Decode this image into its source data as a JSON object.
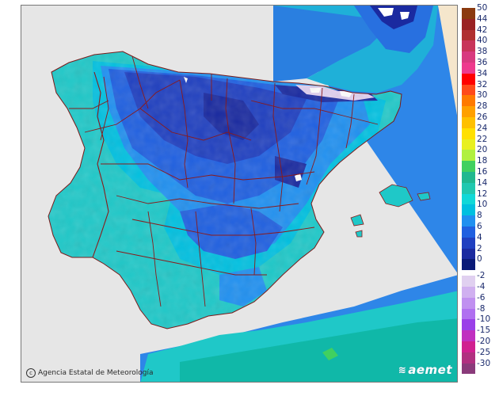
{
  "map": {
    "credit": "Agencia Estatal de Meteorología",
    "brand": "aemet",
    "colors": {
      "sea": "#2e86e8",
      "sea_warm": "#1fd0e6",
      "outside": "#e6e6e6",
      "land_base": "#1fc8c8",
      "border": "#8b1a1a"
    }
  },
  "legend": {
    "positive": [
      {
        "label": "50",
        "color": "#8b3a0f"
      },
      {
        "label": "44",
        "color": "#9a2222"
      },
      {
        "label": "42",
        "color": "#b03030"
      },
      {
        "label": "40",
        "color": "#c8345a"
      },
      {
        "label": "38",
        "color": "#d83a80"
      },
      {
        "label": "36",
        "color": "#ee3a8e"
      },
      {
        "label": "34",
        "color": "#ff0000"
      },
      {
        "label": "32",
        "color": "#ff4a1a"
      },
      {
        "label": "30",
        "color": "#ff7a00"
      },
      {
        "label": "28",
        "color": "#ffa000"
      },
      {
        "label": "26",
        "color": "#ffc000"
      },
      {
        "label": "24",
        "color": "#ffe000"
      },
      {
        "label": "22",
        "color": "#e8f020"
      },
      {
        "label": "20",
        "color": "#b0f040"
      },
      {
        "label": "18",
        "color": "#40d060"
      },
      {
        "label": "16",
        "color": "#20b890"
      },
      {
        "label": "14",
        "color": "#20c8b0"
      },
      {
        "label": "12",
        "color": "#10d8d8"
      },
      {
        "label": "10",
        "color": "#00c0e0"
      },
      {
        "label": "8",
        "color": "#2090f0"
      },
      {
        "label": "6",
        "color": "#2060e0"
      },
      {
        "label": "4",
        "color": "#2040c0"
      },
      {
        "label": "2",
        "color": "#1a2aa0"
      },
      {
        "label": "0",
        "color": "#0a1a78"
      }
    ],
    "negative": [
      {
        "label": "-2",
        "color": "#e0d0f0"
      },
      {
        "label": "-4",
        "color": "#d0b0f0"
      },
      {
        "label": "-6",
        "color": "#c090f0"
      },
      {
        "label": "-8",
        "color": "#b070f0"
      },
      {
        "label": "-10",
        "color": "#9a40e8"
      },
      {
        "label": "-15",
        "color": "#c030c0"
      },
      {
        "label": "-20",
        "color": "#d02090"
      },
      {
        "label": "-25",
        "color": "#b03080"
      },
      {
        "label": "-30",
        "color": "#8a3a7a"
      }
    ]
  }
}
